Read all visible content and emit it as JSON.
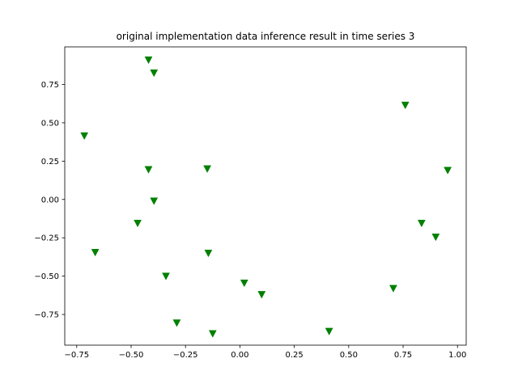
{
  "chart_data": {
    "type": "scatter",
    "title": "original implementation data inference result in time series 3",
    "xlabel": "",
    "ylabel": "",
    "xlim": [
      -0.805,
      1.04
    ],
    "ylim": [
      -0.95,
      0.995
    ],
    "xticks": [
      -0.75,
      -0.5,
      -0.25,
      0.0,
      0.25,
      0.5,
      0.75,
      1.0
    ],
    "xtick_labels": [
      "−0.75",
      "−0.50",
      "−0.25",
      "0.00",
      "0.25",
      "0.50",
      "0.75",
      "1.00"
    ],
    "yticks": [
      -0.75,
      -0.5,
      -0.25,
      0.0,
      0.25,
      0.5,
      0.75
    ],
    "ytick_labels": [
      "−0.75",
      "−0.50",
      "−0.25",
      "0.00",
      "0.25",
      "0.50",
      "0.75"
    ],
    "grid": false,
    "marker": "triangle-down",
    "color": "#008000",
    "series": [
      {
        "points": [
          {
            "x": -0.42,
            "y": 0.91
          },
          {
            "x": -0.395,
            "y": 0.825
          },
          {
            "x": 0.76,
            "y": 0.615
          },
          {
            "x": -0.715,
            "y": 0.415
          },
          {
            "x": -0.42,
            "y": 0.195
          },
          {
            "x": -0.15,
            "y": 0.2
          },
          {
            "x": 0.955,
            "y": 0.19
          },
          {
            "x": -0.395,
            "y": -0.01
          },
          {
            "x": -0.47,
            "y": -0.155
          },
          {
            "x": 0.835,
            "y": -0.155
          },
          {
            "x": 0.9,
            "y": -0.245
          },
          {
            "x": -0.665,
            "y": -0.345
          },
          {
            "x": -0.145,
            "y": -0.35
          },
          {
            "x": -0.34,
            "y": -0.5
          },
          {
            "x": 0.02,
            "y": -0.545
          },
          {
            "x": 0.705,
            "y": -0.58
          },
          {
            "x": 0.1,
            "y": -0.62
          },
          {
            "x": -0.29,
            "y": -0.805
          },
          {
            "x": -0.125,
            "y": -0.875
          },
          {
            "x": 0.41,
            "y": -0.86
          }
        ]
      }
    ]
  }
}
